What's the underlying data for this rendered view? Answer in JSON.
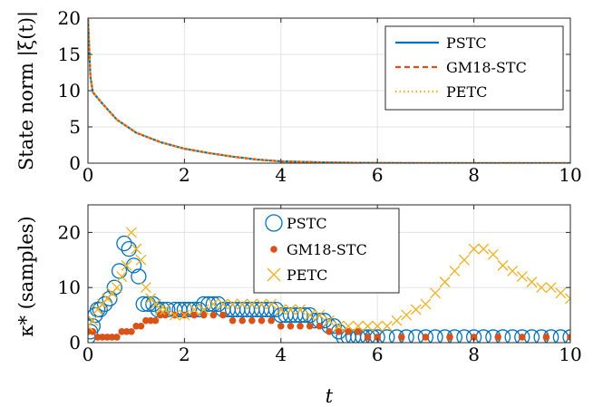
{
  "chart_data": [
    {
      "type": "line",
      "ylabel": "State norm |ξ(t)|",
      "xlim": [
        0,
        10
      ],
      "ylim": [
        0,
        20
      ],
      "xticks": [
        "0",
        "2",
        "4",
        "6",
        "8",
        "10"
      ],
      "yticks": [
        "0",
        "5",
        "10",
        "15",
        "20"
      ],
      "grid": true,
      "legend_position": "top-right",
      "series": [
        {
          "name": "PSTC",
          "color": "#0072BD",
          "style": "solid",
          "x": [
            0,
            0.05,
            0.1,
            0.3,
            0.6,
            1,
            1.5,
            2,
            2.5,
            3,
            3.5,
            4,
            5,
            6,
            7,
            8,
            9,
            10
          ],
          "y": [
            20,
            12,
            9.8,
            8.2,
            6,
            4.2,
            2.9,
            2,
            1.4,
            0.9,
            0.5,
            0.25,
            0.08,
            0.02,
            0,
            0,
            0,
            0
          ]
        },
        {
          "name": "GM18-STC",
          "color": "#D95319",
          "style": "dashed",
          "x": [
            0,
            0.05,
            0.1,
            0.3,
            0.6,
            1,
            1.5,
            2,
            2.5,
            3,
            3.5,
            4,
            5,
            6,
            7,
            8,
            9,
            10
          ],
          "y": [
            20,
            12,
            9.8,
            8.2,
            6,
            4.2,
            2.9,
            2,
            1.4,
            0.9,
            0.5,
            0.25,
            0.08,
            0.02,
            0,
            0,
            0,
            0
          ]
        },
        {
          "name": "PETC",
          "color": "#EDB120",
          "style": "dotted",
          "x": [
            0,
            0.05,
            0.1,
            0.3,
            0.6,
            1,
            1.5,
            2,
            2.5,
            3,
            3.5,
            4,
            5,
            6,
            7,
            8,
            9,
            10
          ],
          "y": [
            20,
            12,
            9.8,
            8.2,
            6,
            4.2,
            2.9,
            2,
            1.4,
            0.9,
            0.5,
            0.25,
            0.08,
            0.02,
            0,
            0,
            0,
            0
          ]
        }
      ]
    },
    {
      "type": "scatter",
      "xlabel": "t",
      "ylabel": "κ* (samples)",
      "xlim": [
        0,
        10
      ],
      "ylim": [
        0,
        25
      ],
      "xticks": [
        "0",
        "2",
        "4",
        "6",
        "8",
        "10"
      ],
      "yticks": [
        "0",
        "10",
        "20"
      ],
      "grid": true,
      "legend_position": "top-center",
      "series": [
        {
          "name": "PSTC",
          "color": "#0072BD",
          "marker": "circle",
          "x": [
            0,
            0.05,
            0.1,
            0.15,
            0.2,
            0.25,
            0.35,
            0.45,
            0.55,
            0.65,
            0.75,
            0.85,
            0.95,
            1.05,
            1.15,
            1.25,
            1.35,
            1.45,
            1.55,
            1.65,
            1.8,
            1.9,
            2.0,
            2.1,
            2.2,
            2.3,
            2.4,
            2.5,
            2.6,
            2.7,
            2.8,
            2.9,
            3.0,
            3.1,
            3.2,
            3.3,
            3.4,
            3.5,
            3.6,
            3.7,
            3.8,
            3.9,
            4.0,
            4.1,
            4.2,
            4.3,
            4.4,
            4.5,
            4.6,
            4.7,
            4.8,
            4.9,
            5.0,
            5.1,
            5.2,
            5.3,
            5.4,
            5.5,
            5.6,
            5.7,
            5.8,
            5.9,
            6.0,
            6.2,
            6.4,
            6.6,
            6.8,
            7.0,
            7.2,
            7.4,
            7.6,
            7.8,
            8.0,
            8.2,
            8.4,
            8.6,
            8.8,
            9.0,
            9.2,
            9.4,
            9.6,
            9.8,
            10.0
          ],
          "y": [
            1,
            2,
            3,
            5,
            6,
            6,
            7,
            8,
            10,
            13,
            18,
            17,
            14,
            12,
            7,
            7,
            7,
            6,
            6,
            6,
            6,
            6,
            6,
            6,
            6,
            6,
            7,
            7,
            7,
            7,
            6,
            6,
            6,
            6,
            6,
            6,
            6,
            6,
            6,
            6,
            6,
            6,
            5,
            5,
            5,
            5,
            5,
            5,
            5,
            4,
            4,
            4,
            3,
            3,
            2,
            1,
            1,
            1,
            1,
            1,
            1,
            1,
            1,
            1,
            1,
            1,
            1,
            1,
            1,
            1,
            1,
            1,
            1,
            1,
            1,
            1,
            1,
            1,
            1,
            1,
            1,
            1,
            1
          ]
        },
        {
          "name": "GM18-STC",
          "color": "#D95319",
          "marker": "dot",
          "x": [
            0,
            0.1,
            0.2,
            0.3,
            0.4,
            0.5,
            0.6,
            0.7,
            0.8,
            0.9,
            1.0,
            1.1,
            1.2,
            1.3,
            1.4,
            1.5,
            1.6,
            1.8,
            2.0,
            2.2,
            2.4,
            2.6,
            2.8,
            3.0,
            3.2,
            3.4,
            3.6,
            3.8,
            4.0,
            4.2,
            4.4,
            4.6,
            4.8,
            5.0,
            5.2,
            5.4,
            5.6,
            5.8,
            6.0,
            6.5,
            7.0,
            7.5,
            8.0,
            8.5,
            9.0,
            9.5,
            10.0
          ],
          "y": [
            2,
            2,
            1,
            1,
            1,
            1,
            1,
            2,
            2,
            2,
            3,
            3,
            4,
            4,
            4,
            5,
            5,
            5,
            5,
            5,
            5,
            5,
            5,
            4,
            4,
            4,
            4,
            4,
            3,
            3,
            3,
            3,
            3,
            2,
            2,
            2,
            2,
            1,
            1,
            1,
            1,
            1,
            1,
            1,
            1,
            1,
            1
          ]
        },
        {
          "name": "PETC",
          "color": "#EDB120",
          "marker": "x",
          "x": [
            0,
            0.1,
            0.2,
            0.3,
            0.4,
            0.5,
            0.6,
            0.7,
            0.8,
            0.9,
            1.0,
            1.1,
            1.2,
            1.3,
            1.4,
            1.5,
            1.6,
            1.8,
            2.0,
            2.2,
            2.4,
            2.6,
            2.8,
            3.0,
            3.2,
            3.4,
            3.6,
            3.8,
            4.0,
            4.2,
            4.4,
            4.6,
            4.8,
            5.0,
            5.2,
            5.4,
            5.6,
            5.8,
            6.0,
            6.2,
            6.4,
            6.6,
            6.8,
            7.0,
            7.2,
            7.4,
            7.6,
            7.8,
            8.0,
            8.2,
            8.4,
            8.6,
            8.8,
            9.0,
            9.2,
            9.4,
            9.6,
            9.8,
            10.0
          ],
          "y": [
            3,
            4,
            6,
            7,
            8,
            9,
            10,
            12,
            14,
            20,
            17,
            15,
            10,
            8,
            7,
            6,
            6,
            5,
            5,
            6,
            6,
            7,
            7,
            7,
            7,
            7,
            7,
            7,
            6,
            6,
            6,
            5,
            5,
            4,
            3,
            3,
            3,
            3,
            3,
            3,
            4,
            5,
            6,
            7,
            9,
            11,
            13,
            15,
            17,
            17,
            16,
            14,
            13,
            12,
            11,
            10,
            10,
            9,
            8
          ]
        }
      ]
    }
  ]
}
